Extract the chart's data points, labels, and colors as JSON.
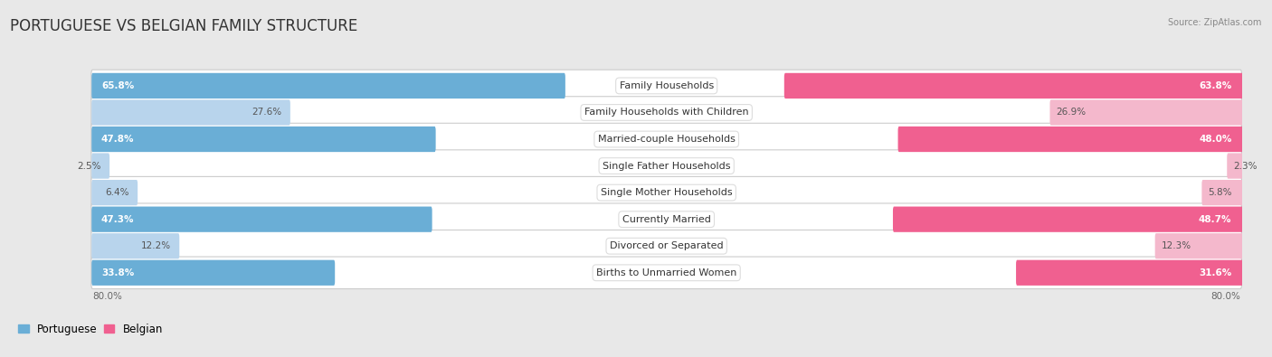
{
  "title": "PORTUGUESE VS BELGIAN FAMILY STRUCTURE",
  "source": "Source: ZipAtlas.com",
  "categories": [
    "Family Households",
    "Family Households with Children",
    "Married-couple Households",
    "Single Father Households",
    "Single Mother Households",
    "Currently Married",
    "Divorced or Separated",
    "Births to Unmarried Women"
  ],
  "portuguese_values": [
    65.8,
    27.6,
    47.8,
    2.5,
    6.4,
    47.3,
    12.2,
    33.8
  ],
  "belgian_values": [
    63.8,
    26.9,
    48.0,
    2.3,
    5.8,
    48.7,
    12.3,
    31.6
  ],
  "max_value": 80.0,
  "portuguese_color_dark": "#6aaed6",
  "belgian_color_dark": "#f06090",
  "portuguese_color_light": "#b8d4ec",
  "belgian_color_light": "#f4b8cc",
  "background_color": "#e8e8e8",
  "row_bg_color": "#ffffff",
  "title_fontsize": 12,
  "label_fontsize": 8,
  "value_fontsize": 7.5,
  "threshold_dark": 30
}
